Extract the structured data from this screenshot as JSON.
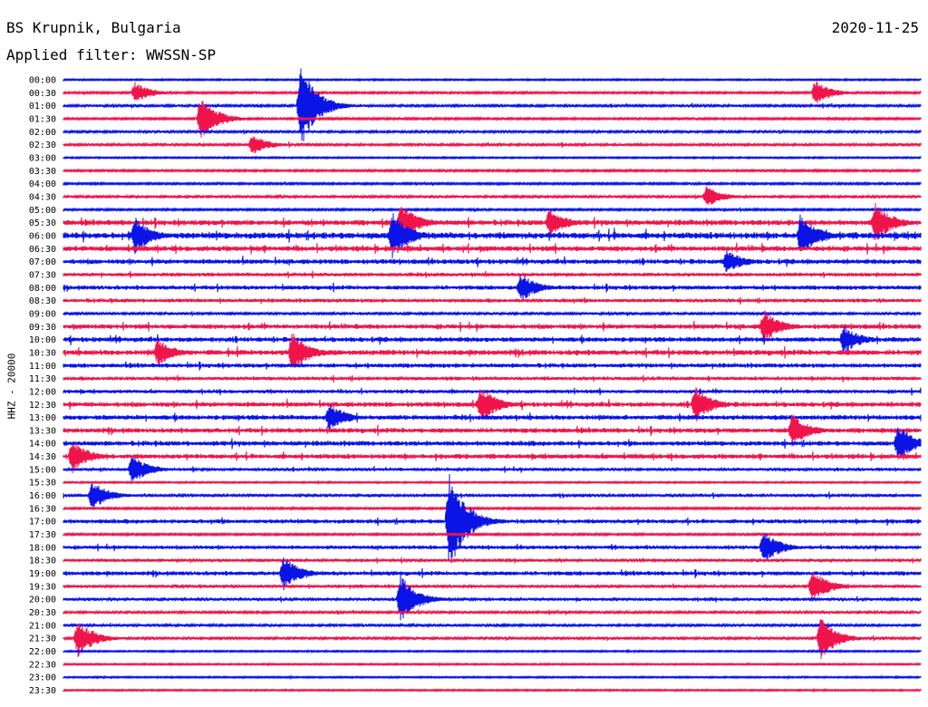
{
  "header": {
    "station": "BS Krupnik, Bulgaria",
    "date": "2020-11-25",
    "filter": "Applied filter: WWSSN-SP",
    "channel": "HHZ - 20000"
  },
  "colors": {
    "blue": "#0a14e6",
    "red": "#f0144b"
  },
  "chart_data": {
    "type": "line",
    "title": "BS Krupnik, Bulgaria",
    "ylabel": "HHZ - 20000",
    "trace_colors": [
      "blue",
      "red"
    ],
    "rows": [
      "00:00",
      "00:30",
      "01:00",
      "01:30",
      "02:00",
      "02:30",
      "03:00",
      "03:30",
      "04:00",
      "04:30",
      "05:00",
      "05:30",
      "06:00",
      "06:30",
      "07:00",
      "07:30",
      "08:00",
      "08:30",
      "09:00",
      "09:30",
      "10:00",
      "10:30",
      "11:00",
      "11:30",
      "12:00",
      "12:30",
      "13:00",
      "13:30",
      "14:00",
      "14:30",
      "15:00",
      "15:30",
      "16:00",
      "16:30",
      "17:00",
      "17:30",
      "18:00",
      "18:30",
      "19:00",
      "19:30",
      "20:00",
      "20:30",
      "21:00",
      "21:30",
      "22:00",
      "22:30",
      "23:00",
      "23:30"
    ],
    "activity": [
      0.1,
      0.2,
      0.3,
      0.2,
      0.3,
      0.3,
      0.1,
      0.2,
      0.2,
      0.3,
      0.2,
      0.8,
      1.0,
      0.8,
      0.7,
      0.5,
      0.6,
      0.5,
      0.3,
      0.7,
      0.7,
      0.8,
      0.6,
      0.5,
      0.5,
      0.7,
      0.7,
      0.7,
      0.7,
      0.7,
      0.4,
      0.1,
      0.4,
      0.2,
      0.6,
      0.2,
      0.5,
      0.4,
      0.6,
      0.4,
      0.4,
      0.3,
      0.3,
      0.3,
      0.1,
      0.1,
      0.1,
      0.1
    ],
    "events": [
      {
        "row": 1,
        "min": 2.5,
        "amp": 0.5
      },
      {
        "row": 1,
        "min": 26.3,
        "amp": 0.6
      },
      {
        "row": 2,
        "min": 8.3,
        "amp": 2.0
      },
      {
        "row": 3,
        "min": 4.8,
        "amp": 1.1
      },
      {
        "row": 5,
        "min": 6.6,
        "amp": 0.5
      },
      {
        "row": 9,
        "min": 22.5,
        "amp": 0.5
      },
      {
        "row": 11,
        "min": 11.8,
        "amp": 1.0
      },
      {
        "row": 11,
        "min": 17.0,
        "amp": 0.7
      },
      {
        "row": 11,
        "min": 28.4,
        "amp": 1.0
      },
      {
        "row": 12,
        "min": 2.5,
        "amp": 0.9
      },
      {
        "row": 12,
        "min": 11.5,
        "amp": 1.2
      },
      {
        "row": 12,
        "min": 25.8,
        "amp": 1.1
      },
      {
        "row": 14,
        "min": 23.2,
        "amp": 0.6
      },
      {
        "row": 16,
        "min": 16.0,
        "amp": 0.7
      },
      {
        "row": 19,
        "min": 24.5,
        "amp": 0.8
      },
      {
        "row": 20,
        "min": 27.3,
        "amp": 0.7
      },
      {
        "row": 21,
        "min": 3.3,
        "amp": 0.7
      },
      {
        "row": 21,
        "min": 8.0,
        "amp": 1.0
      },
      {
        "row": 25,
        "min": 14.6,
        "amp": 0.9
      },
      {
        "row": 25,
        "min": 22.1,
        "amp": 0.9
      },
      {
        "row": 26,
        "min": 9.3,
        "amp": 0.7
      },
      {
        "row": 27,
        "min": 25.5,
        "amp": 0.8
      },
      {
        "row": 28,
        "min": 29.2,
        "amp": 0.9
      },
      {
        "row": 29,
        "min": 0.3,
        "amp": 0.8
      },
      {
        "row": 30,
        "min": 2.4,
        "amp": 0.7
      },
      {
        "row": 32,
        "min": 1.0,
        "amp": 0.7
      },
      {
        "row": 34,
        "min": 13.5,
        "amp": 2.5
      },
      {
        "row": 36,
        "min": 24.5,
        "amp": 0.8
      },
      {
        "row": 38,
        "min": 7.7,
        "amp": 0.8
      },
      {
        "row": 39,
        "min": 26.2,
        "amp": 0.8
      },
      {
        "row": 40,
        "min": 11.8,
        "amp": 1.2
      },
      {
        "row": 43,
        "min": 0.5,
        "amp": 0.9
      },
      {
        "row": 43,
        "min": 26.5,
        "amp": 1.0
      }
    ]
  }
}
